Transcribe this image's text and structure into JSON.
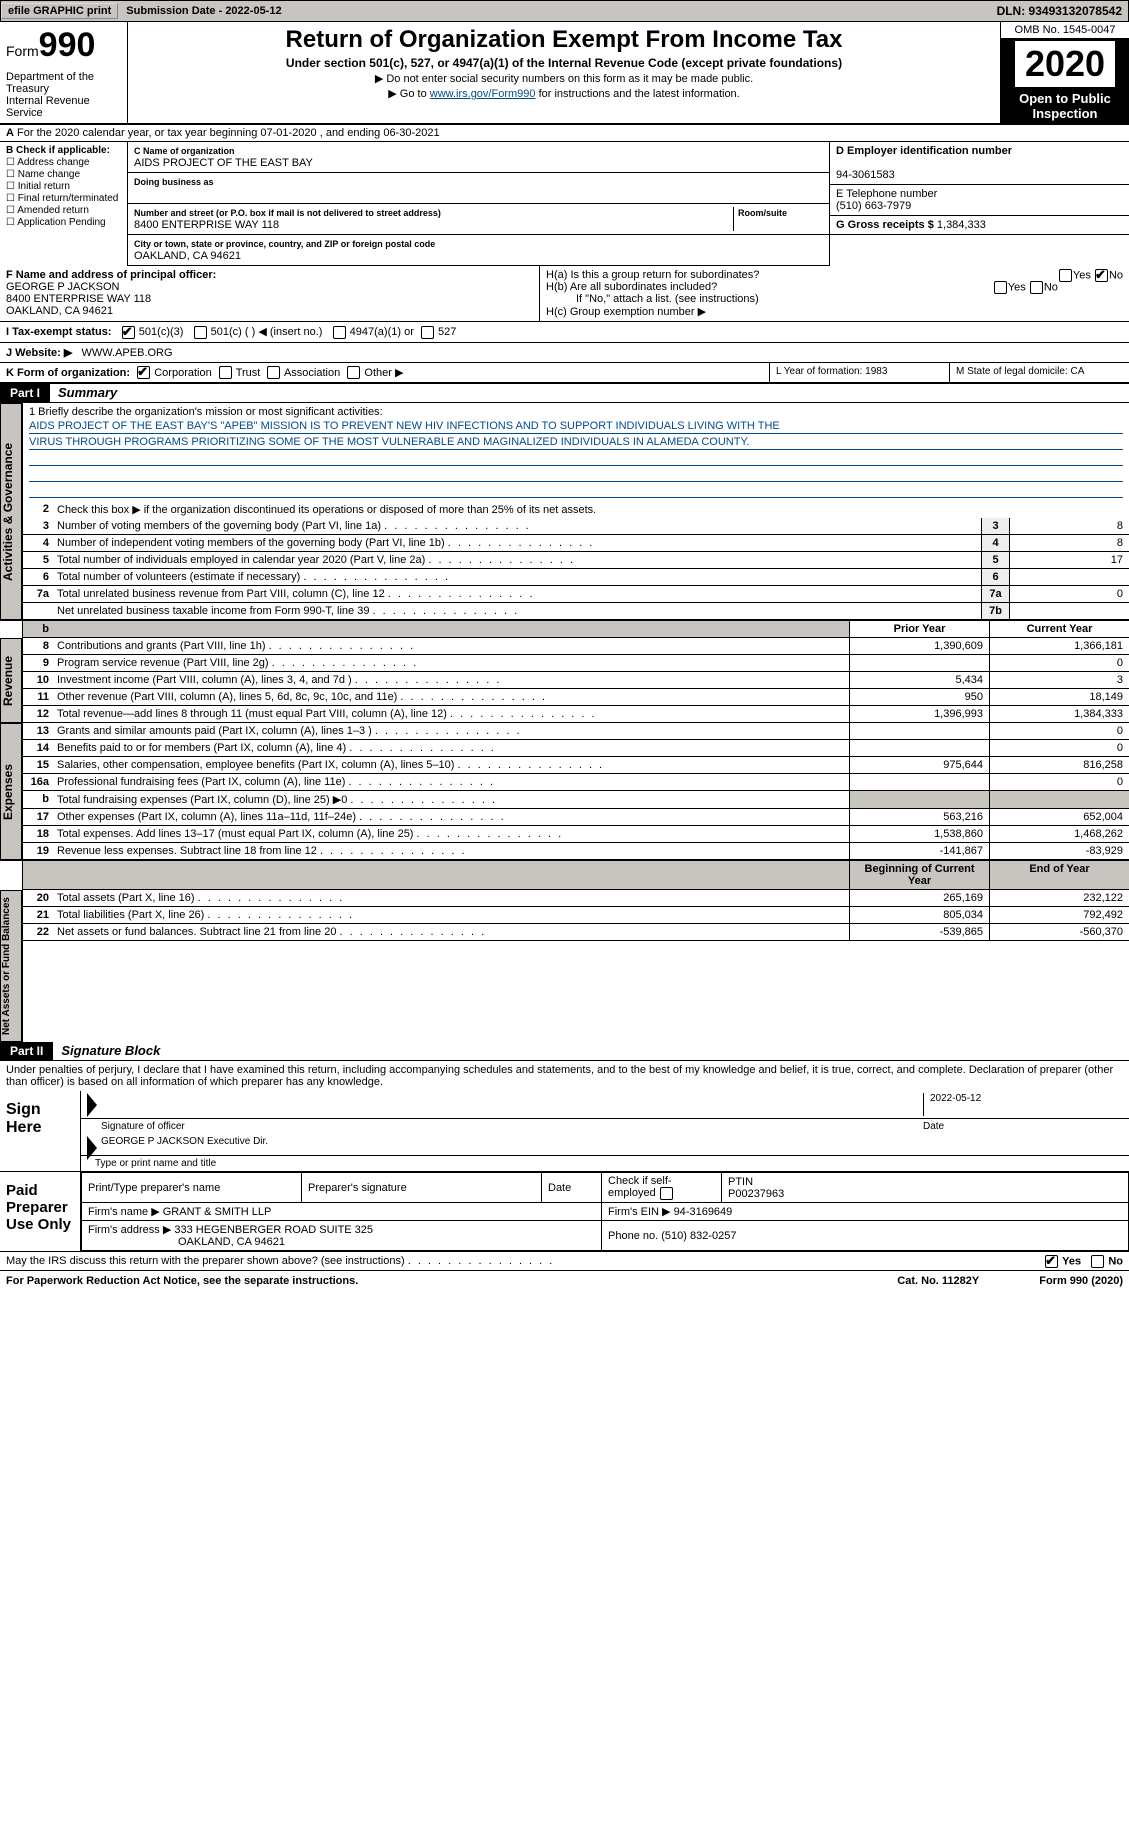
{
  "topbar": {
    "efile": "efile GRAPHIC print",
    "submission": "Submission Date - 2022-05-12",
    "dln": "DLN: 93493132078542"
  },
  "header": {
    "form": "Form",
    "formno": "990",
    "dept": "Department of the Treasury\nInternal Revenue Service",
    "title": "Return of Organization Exempt From Income Tax",
    "sub1": "Under section 501(c), 527, or 4947(a)(1) of the Internal Revenue Code (except private foundations)",
    "sub2": "▶ Do not enter social security numbers on this form as it may be made public.",
    "sub3_pre": "▶ Go to ",
    "sub3_link": "www.irs.gov/Form990",
    "sub3_post": " for instructions and the latest information.",
    "omb": "OMB No. 1545-0047",
    "year": "2020",
    "open": "Open to Public Inspection"
  },
  "rowA": "For the 2020 calendar year, or tax year beginning 07-01-2020  , and ending 06-30-2021",
  "B": {
    "label": "B Check if applicable:",
    "opts": [
      "Address change",
      "Name change",
      "Initial return",
      "Final return/terminated",
      "Amended return",
      "Application Pending"
    ]
  },
  "C": {
    "nameLabel": "C Name of organization",
    "name": "AIDS PROJECT OF THE EAST BAY",
    "dba": "Doing business as",
    "addrLabel": "Number and street (or P.O. box if mail is not delivered to street address)",
    "addr": "8400 ENTERPRISE WAY 118",
    "room": "Room/suite",
    "cityLabel": "City or town, state or province, country, and ZIP or foreign postal code",
    "city": "OAKLAND, CA  94621"
  },
  "D": {
    "label": "D Employer identification number",
    "val": "94-3061583"
  },
  "E": {
    "label": "E Telephone number",
    "val": "(510) 663-7979"
  },
  "G": {
    "label": "G Gross receipts $",
    "val": "1,384,333"
  },
  "F": {
    "label": "F Name and address of principal officer:",
    "name": "GEORGE P JACKSON",
    "addr1": "8400 ENTERPRISE WAY 118",
    "addr2": "OAKLAND, CA  94621"
  },
  "H": {
    "a": "H(a)  Is this a group return for subordinates?",
    "b": "H(b)  Are all subordinates included?",
    "bnote": "If \"No,\" attach a list. (see instructions)",
    "c": "H(c)  Group exemption number ▶",
    "yes": "Yes",
    "no": "No"
  },
  "I": {
    "label": "I   Tax-exempt status:",
    "o1": "501(c)(3)",
    "o2": "501(c) (  ) ◀ (insert no.)",
    "o3": "4947(a)(1) or",
    "o4": "527"
  },
  "J": {
    "label": "J   Website: ▶",
    "val": "WWW.APEB.ORG"
  },
  "K": {
    "label": "K Form of organization:",
    "o1": "Corporation",
    "o2": "Trust",
    "o3": "Association",
    "o4": "Other ▶"
  },
  "L": {
    "label": "L Year of formation: 1983"
  },
  "M": {
    "label": "M State of legal domicile: CA"
  },
  "part1": {
    "hdr": "Part I",
    "title": "Summary"
  },
  "mission": {
    "l1": "1   Briefly describe the organization's mission or most significant activities:",
    "t1": "AIDS PROJECT OF THE EAST BAY'S \"APEB\" MISSION IS TO PREVENT NEW HIV INFECTIONS AND TO SUPPORT INDIVIDUALS LIVING WITH THE",
    "t2": "VIRUS THROUGH PROGRAMS PRIORITIZING SOME OF THE MOST VULNERABLE AND MAGINALIZED INDIVIDUALS IN ALAMEDA COUNTY."
  },
  "gov": {
    "l2": "Check this box ▶        if the organization discontinued its operations or disposed of more than 25% of its net assets.",
    "rows": [
      {
        "n": "3",
        "t": "Number of voting members of the governing body (Part VI, line 1a)",
        "b": "3",
        "v": "8"
      },
      {
        "n": "4",
        "t": "Number of independent voting members of the governing body (Part VI, line 1b)",
        "b": "4",
        "v": "8"
      },
      {
        "n": "5",
        "t": "Total number of individuals employed in calendar year 2020 (Part V, line 2a)",
        "b": "5",
        "v": "17"
      },
      {
        "n": "6",
        "t": "Total number of volunteers (estimate if necessary)",
        "b": "6",
        "v": ""
      },
      {
        "n": "7a",
        "t": "Total unrelated business revenue from Part VIII, column (C), line 12",
        "b": "7a",
        "v": "0"
      },
      {
        "n": "",
        "t": "Net unrelated business taxable income from Form 990-T, line 39",
        "b": "7b",
        "v": ""
      }
    ]
  },
  "cols": {
    "prior": "Prior Year",
    "curr": "Current Year",
    "beg": "Beginning of Current Year",
    "end": "End of Year"
  },
  "revenue": [
    {
      "n": "8",
      "t": "Contributions and grants (Part VIII, line 1h)",
      "p": "1,390,609",
      "c": "1,366,181"
    },
    {
      "n": "9",
      "t": "Program service revenue (Part VIII, line 2g)",
      "p": "",
      "c": "0"
    },
    {
      "n": "10",
      "t": "Investment income (Part VIII, column (A), lines 3, 4, and 7d )",
      "p": "5,434",
      "c": "3"
    },
    {
      "n": "11",
      "t": "Other revenue (Part VIII, column (A), lines 5, 6d, 8c, 9c, 10c, and 11e)",
      "p": "950",
      "c": "18,149"
    },
    {
      "n": "12",
      "t": "Total revenue—add lines 8 through 11 (must equal Part VIII, column (A), line 12)",
      "p": "1,396,993",
      "c": "1,384,333"
    }
  ],
  "expenses": [
    {
      "n": "13",
      "t": "Grants and similar amounts paid (Part IX, column (A), lines 1–3 )",
      "p": "",
      "c": "0"
    },
    {
      "n": "14",
      "t": "Benefits paid to or for members (Part IX, column (A), line 4)",
      "p": "",
      "c": "0"
    },
    {
      "n": "15",
      "t": "Salaries, other compensation, employee benefits (Part IX, column (A), lines 5–10)",
      "p": "975,644",
      "c": "816,258"
    },
    {
      "n": "16a",
      "t": "Professional fundraising fees (Part IX, column (A), line 11e)",
      "p": "",
      "c": "0"
    },
    {
      "n": "b",
      "t": "Total fundraising expenses (Part IX, column (D), line 25) ▶0",
      "p": "GREY",
      "c": "GREY"
    },
    {
      "n": "17",
      "t": "Other expenses (Part IX, column (A), lines 11a–11d, 11f–24e)",
      "p": "563,216",
      "c": "652,004"
    },
    {
      "n": "18",
      "t": "Total expenses. Add lines 13–17 (must equal Part IX, column (A), line 25)",
      "p": "1,538,860",
      "c": "1,468,262"
    },
    {
      "n": "19",
      "t": "Revenue less expenses. Subtract line 18 from line 12",
      "p": "-141,867",
      "c": "-83,929"
    }
  ],
  "netassets": [
    {
      "n": "20",
      "t": "Total assets (Part X, line 16)",
      "p": "265,169",
      "c": "232,122"
    },
    {
      "n": "21",
      "t": "Total liabilities (Part X, line 26)",
      "p": "805,034",
      "c": "792,492"
    },
    {
      "n": "22",
      "t": "Net assets or fund balances. Subtract line 21 from line 20",
      "p": "-539,865",
      "c": "-560,370"
    }
  ],
  "part2": {
    "hdr": "Part II",
    "title": "Signature Block"
  },
  "penalty": "Under penalties of perjury, I declare that I have examined this return, including accompanying schedules and statements, and to the best of my knowledge and belief, it is true, correct, and complete. Declaration of preparer (other than officer) is based on all information of which preparer has any knowledge.",
  "sign": {
    "here": "Sign Here",
    "sigoff": "Signature of officer",
    "date": "Date",
    "datev": "2022-05-12",
    "name": "GEORGE P JACKSON  Executive Dir.",
    "typeline": "Type or print name and title"
  },
  "paid": {
    "label": "Paid Preparer Use Only",
    "h1": "Print/Type preparer's name",
    "h2": "Preparer's signature",
    "h3": "Date",
    "h4": "Check        if self-employed",
    "h5": "PTIN",
    "ptin": "P00237963",
    "firm": "Firm's name    ▶",
    "firmv": "GRANT & SMITH LLP",
    "ein": "Firm's EIN ▶",
    "einv": "94-3169649",
    "faddr": "Firm's address ▶",
    "faddrv1": "333 HEGENBERGER ROAD SUITE 325",
    "faddrv2": "OAKLAND, CA  94621",
    "phone": "Phone no.",
    "phonev": "(510) 832-0257"
  },
  "discuss": "May the IRS discuss this return with the preparer shown above? (see instructions)",
  "footer": {
    "f1": "For Paperwork Reduction Act Notice, see the separate instructions.",
    "f2": "Cat. No. 11282Y",
    "f3": "Form 990 (2020)"
  },
  "tabs": {
    "gov": "Activities & Governance",
    "rev": "Revenue",
    "exp": "Expenses",
    "net": "Net Assets or Fund Balances"
  }
}
